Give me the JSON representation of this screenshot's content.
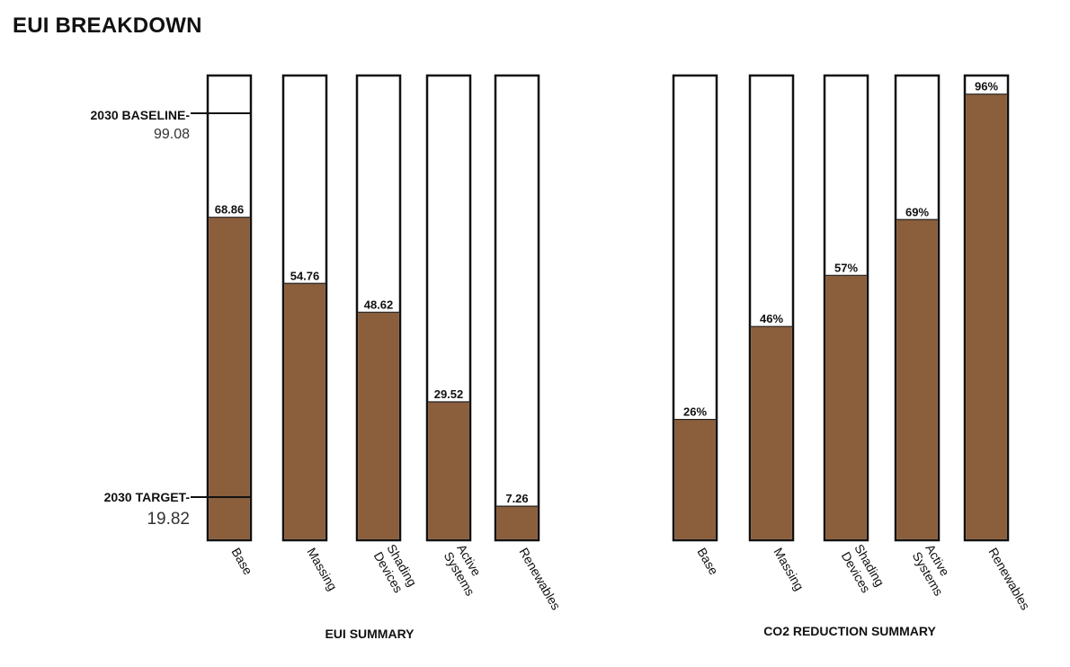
{
  "page_title": "EUI BREAKDOWN",
  "chart_data": [
    {
      "type": "bar",
      "xlabel": "EUI SUMMARY",
      "categories": [
        [
          "Base"
        ],
        [
          "Massing"
        ],
        [
          "Shading",
          "Devices"
        ],
        [
          "Active",
          "Systems"
        ],
        [
          "Renewables"
        ]
      ],
      "values": [
        68.86,
        54.76,
        48.62,
        29.52,
        7.26
      ],
      "value_labels": [
        "68.86",
        "54.76",
        "48.62",
        "29.52",
        "7.26"
      ],
      "ylim": [
        0,
        99.08
      ],
      "bar_color": "#8B5E3C",
      "reference_lines": [
        {
          "label": "2030 BASELINE-",
          "value_text": "99.08",
          "value": 99.08
        },
        {
          "label": "2030 TARGET-",
          "value_text": "19.82",
          "value": 19.82
        }
      ]
    },
    {
      "type": "bar",
      "xlabel": "CO2 REDUCTION SUMMARY",
      "categories": [
        [
          "Base"
        ],
        [
          "Massing"
        ],
        [
          "Shading",
          "Devices"
        ],
        [
          "Active",
          "Systems"
        ],
        [
          "Renewables"
        ]
      ],
      "values": [
        26,
        46,
        57,
        69,
        96
      ],
      "value_labels": [
        "26%",
        "46%",
        "57%",
        "69%",
        "96%"
      ],
      "ylim": [
        0,
        100
      ],
      "bar_color": "#8B5E3C"
    }
  ]
}
